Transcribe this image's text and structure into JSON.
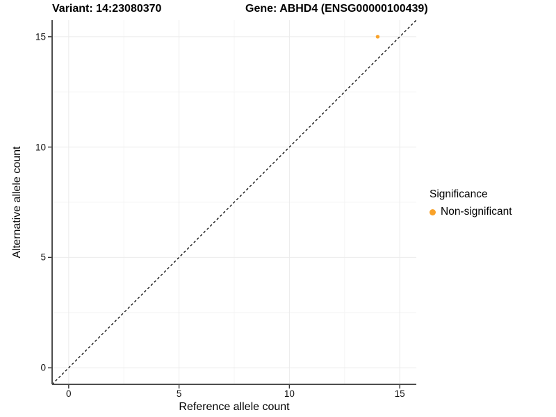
{
  "header": {
    "variant_title": "Variant: 14:23080370",
    "gene_title": "Gene: ABHD4 (ENSG00000100439)"
  },
  "axes": {
    "x_label": "Reference allele count",
    "y_label": "Alternative allele count"
  },
  "legend": {
    "title": "Significance",
    "items": [
      {
        "label": "Non-significant",
        "color": "#F9A229"
      }
    ]
  },
  "colors": {
    "non_significant_point": "#F9A229",
    "axis_line": "#4D4D4D",
    "tick_mark": "#333333",
    "major_grid": "#EBEBEB",
    "minor_grid": "#F5F5F5",
    "dashed_line": "#000000",
    "background": "#FFFFFF"
  },
  "chart_data": {
    "type": "scatter",
    "title": "Variant: 14:23080370   Gene: ABHD4 (ENSG00000100439)",
    "xlabel": "Reference allele count",
    "ylabel": "Alternative allele count",
    "xlim": [
      -0.75,
      15.75
    ],
    "ylim": [
      -0.75,
      15.75
    ],
    "x_ticks": [
      0,
      5,
      10,
      15
    ],
    "x_tick_labels": [
      "0",
      "5",
      "10",
      "15"
    ],
    "y_ticks": [
      0,
      5,
      10,
      15
    ],
    "y_tick_labels": [
      "0",
      "5",
      "10",
      "15"
    ],
    "x_minor_ticks": [
      2.5,
      7.5,
      12.5
    ],
    "y_minor_ticks": [
      2.5,
      7.5,
      12.5
    ],
    "grid": "major and minor, light gray",
    "legend_position": "right",
    "series": [
      {
        "name": "Non-significant",
        "color": "#F9A229",
        "points": [
          {
            "x": 14,
            "y": 15
          }
        ]
      }
    ],
    "reference_line": {
      "type": "identity y=x",
      "slope": 1,
      "intercept": 0,
      "style": "dashed",
      "color": "#000000"
    }
  }
}
